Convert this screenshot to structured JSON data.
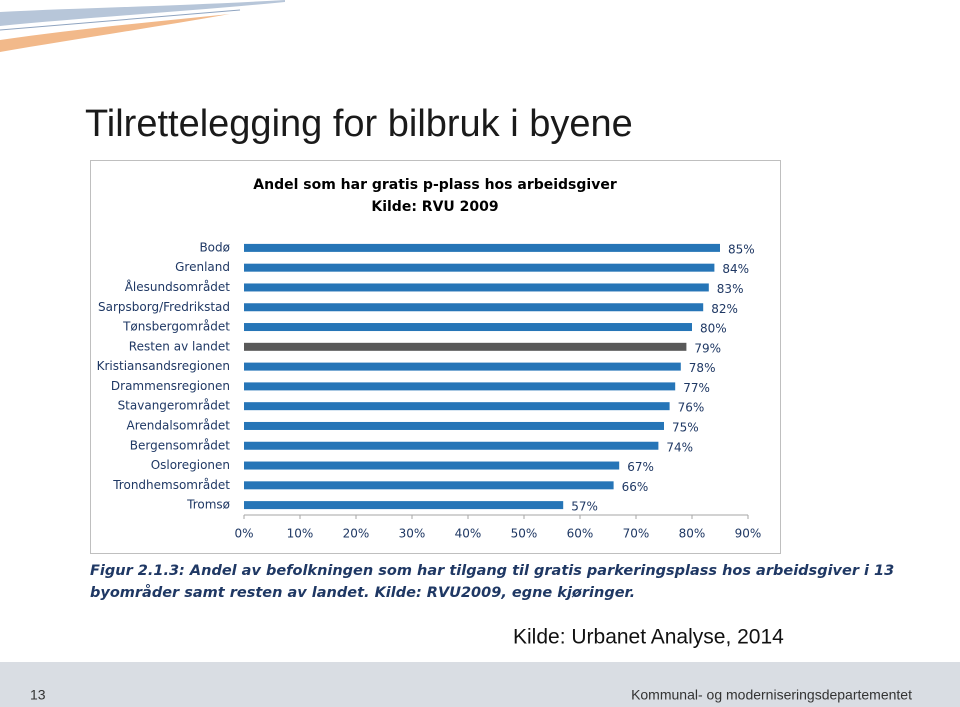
{
  "slide_title": "Tilrettelegging for bilbruk i byene",
  "chart_data": {
    "type": "bar",
    "orientation": "horizontal",
    "title": "Andel som har gratis p-plass hos arbeidsgiver",
    "subtitle": "Kilde: RVU 2009",
    "categories": [
      "Bodø",
      "Grenland",
      "Ålesundsområdet",
      "Sarpsborg/Fredrikstad",
      "Tønsbergområdet",
      "Resten av landet",
      "Kristiansandsregionen",
      "Drammensregionen",
      "Stavangerområdet",
      "Arendalsområdet",
      "Bergensområdet",
      "Osloregionen",
      "Trondhemsområdet",
      "Tromsø"
    ],
    "values": [
      85,
      84,
      83,
      82,
      80,
      79,
      78,
      77,
      76,
      75,
      74,
      67,
      66,
      57
    ],
    "value_labels": [
      "85%",
      "84%",
      "83%",
      "82%",
      "80%",
      "79%",
      "78%",
      "77%",
      "76%",
      "75%",
      "74%",
      "67%",
      "66%",
      "57%"
    ],
    "colors": [
      "#2675b7",
      "#2675b7",
      "#2675b7",
      "#2675b7",
      "#2675b7",
      "#595959",
      "#2675b7",
      "#2675b7",
      "#2675b7",
      "#2675b7",
      "#2675b7",
      "#2675b7",
      "#2675b7",
      "#2675b7"
    ],
    "xlim": [
      0,
      90
    ],
    "xticks": [
      {
        "value": 0,
        "label": "0%"
      },
      {
        "value": 10,
        "label": "10%"
      },
      {
        "value": 20,
        "label": "20%"
      },
      {
        "value": 30,
        "label": "30%"
      },
      {
        "value": 40,
        "label": "40%"
      },
      {
        "value": 50,
        "label": "50%"
      },
      {
        "value": 60,
        "label": "60%"
      },
      {
        "value": 70,
        "label": "70%"
      },
      {
        "value": 80,
        "label": "80%"
      },
      {
        "value": 90,
        "label": "90%"
      }
    ],
    "grid": false
  },
  "caption": [
    "Figur 2.1.3: Andel av befolkningen som har tilgang til gratis parkeringsplass hos arbeidsgiver i 13",
    "byområder samt resten av landet. Kilde: RVU2009, egne kjøringer."
  ],
  "source": "Kilde: Urbanet Analyse, 2014",
  "footer": {
    "page_number": "13",
    "organization": "Kommunal- og moderniseringsdepartementet"
  }
}
